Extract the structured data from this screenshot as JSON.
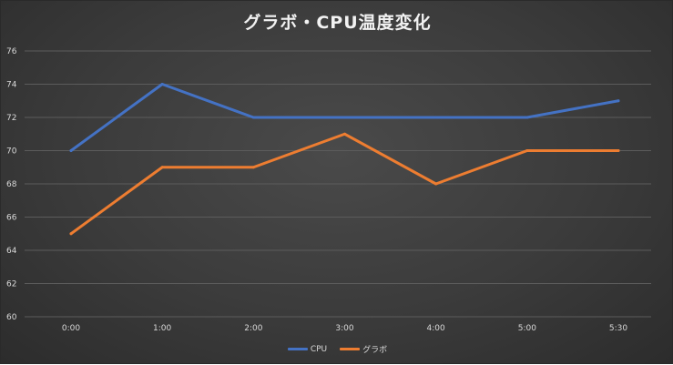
{
  "chart_data": {
    "type": "line",
    "title": "グラボ・CPU温度変化",
    "categories": [
      "0:00",
      "1:00",
      "2:00",
      "3:00",
      "4:00",
      "5:00",
      "5:30"
    ],
    "series": [
      {
        "name": "CPU",
        "color": "#4472c4",
        "values": [
          70,
          74,
          72,
          72,
          72,
          72,
          73
        ]
      },
      {
        "name": "グラボ",
        "color": "#ed7d31",
        "values": [
          65,
          69,
          69,
          71,
          68,
          70,
          70
        ]
      }
    ],
    "ylim": [
      60,
      76
    ],
    "yticks": [
      60,
      62,
      64,
      66,
      68,
      70,
      72,
      74,
      76
    ],
    "grid": true,
    "legend_position": "bottom",
    "xlabel": "",
    "ylabel": ""
  }
}
